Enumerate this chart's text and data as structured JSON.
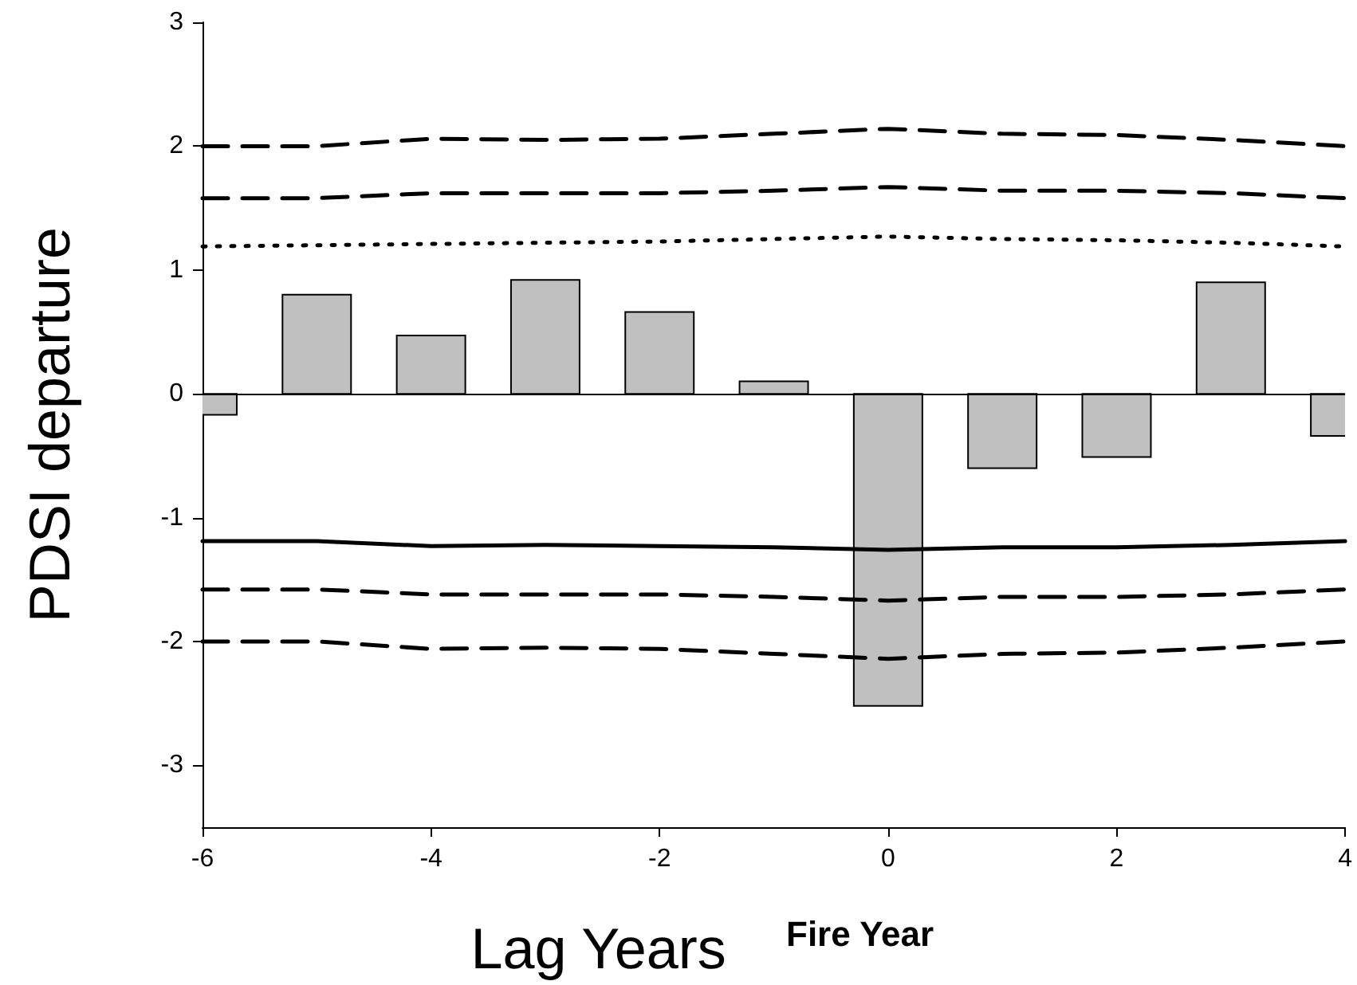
{
  "chart_data": {
    "type": "bar",
    "xlabel": "Lag Years",
    "ylabel": "PDSI departure",
    "annotations": [
      "Fire Year"
    ],
    "x": [
      -6,
      -5,
      -4,
      -3,
      -2,
      -1,
      0,
      1,
      2,
      3,
      4
    ],
    "xlim": [
      -6,
      4
    ],
    "xticks": [
      -6,
      -4,
      -2,
      0,
      2,
      4
    ],
    "ylim": [
      -3.5,
      3
    ],
    "yticks": [
      -3,
      -2,
      -1,
      0,
      1,
      2,
      3
    ],
    "grid": false,
    "ref_lines": [
      {
        "axis": "y",
        "value": 0
      }
    ],
    "series": [
      {
        "color": "#c0c0c0",
        "values": [
          -0.17,
          0.8,
          0.47,
          0.92,
          0.66,
          0.1,
          -2.52,
          -0.6,
          -0.51,
          0.9,
          -0.34
        ]
      },
      {
        "type": "line",
        "color": "#000000",
        "line_style": "dashed",
        "values": [
          2.0,
          2.0,
          2.06,
          2.05,
          2.06,
          2.1,
          2.14,
          2.1,
          2.09,
          2.05,
          2.0
        ]
      },
      {
        "type": "line",
        "color": "#000000",
        "line_style": "dashed",
        "values": [
          1.58,
          1.58,
          1.62,
          1.62,
          1.62,
          1.64,
          1.67,
          1.64,
          1.64,
          1.62,
          1.58
        ]
      },
      {
        "type": "line",
        "color": "#000000",
        "line_style": "dotted",
        "values": [
          1.19,
          1.2,
          1.21,
          1.22,
          1.23,
          1.25,
          1.27,
          1.25,
          1.24,
          1.22,
          1.19
        ]
      },
      {
        "type": "line",
        "color": "#000000",
        "line_style": "solid",
        "values": [
          -1.19,
          -1.19,
          -1.23,
          -1.22,
          -1.23,
          -1.24,
          -1.26,
          -1.24,
          -1.24,
          -1.22,
          -1.19
        ]
      },
      {
        "type": "line",
        "color": "#000000",
        "line_style": "dashed",
        "values": [
          -1.58,
          -1.58,
          -1.62,
          -1.62,
          -1.62,
          -1.64,
          -1.67,
          -1.64,
          -1.64,
          -1.62,
          -1.58
        ]
      },
      {
        "type": "line",
        "color": "#000000",
        "line_style": "dashed",
        "values": [
          -2.0,
          -2.0,
          -2.06,
          -2.05,
          -2.06,
          -2.1,
          -2.14,
          -2.1,
          -2.09,
          -2.05,
          -2.0
        ]
      }
    ]
  }
}
